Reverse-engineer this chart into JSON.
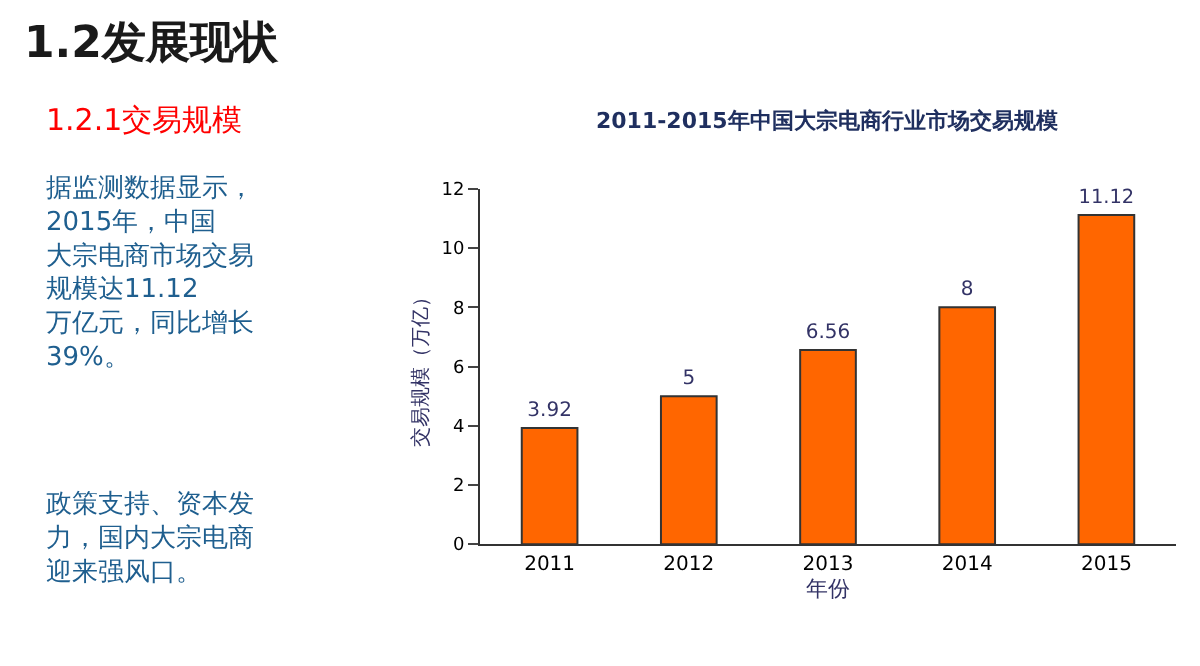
{
  "chart_data": {
    "type": "bar",
    "title": "1.2发展现状",
    "subtitle": "2011-2015年中国大宗电商行业市场交易规模",
    "xlabel": "年份",
    "ylabel": "交易规模（万亿）",
    "annotations": [
      "1.2.1交易规模",
      "据监测数据显示，2015年，中国大宗电商市场交易规模达11.12万亿元，同比增长39%。",
      "政策支持、资本发力，国内大宗电商迎来强风口。"
    ],
    "categories": [
      "2011",
      "2012",
      "2013",
      "2014",
      "2015"
    ],
    "values": [
      3.92,
      5,
      6.56,
      8,
      11.12
    ],
    "color": "#ff6600",
    "ylim": [
      0,
      12
    ],
    "yticks": [
      0,
      2,
      4,
      6,
      8,
      10,
      12
    ],
    "data_labels": true,
    "legend": false
  }
}
